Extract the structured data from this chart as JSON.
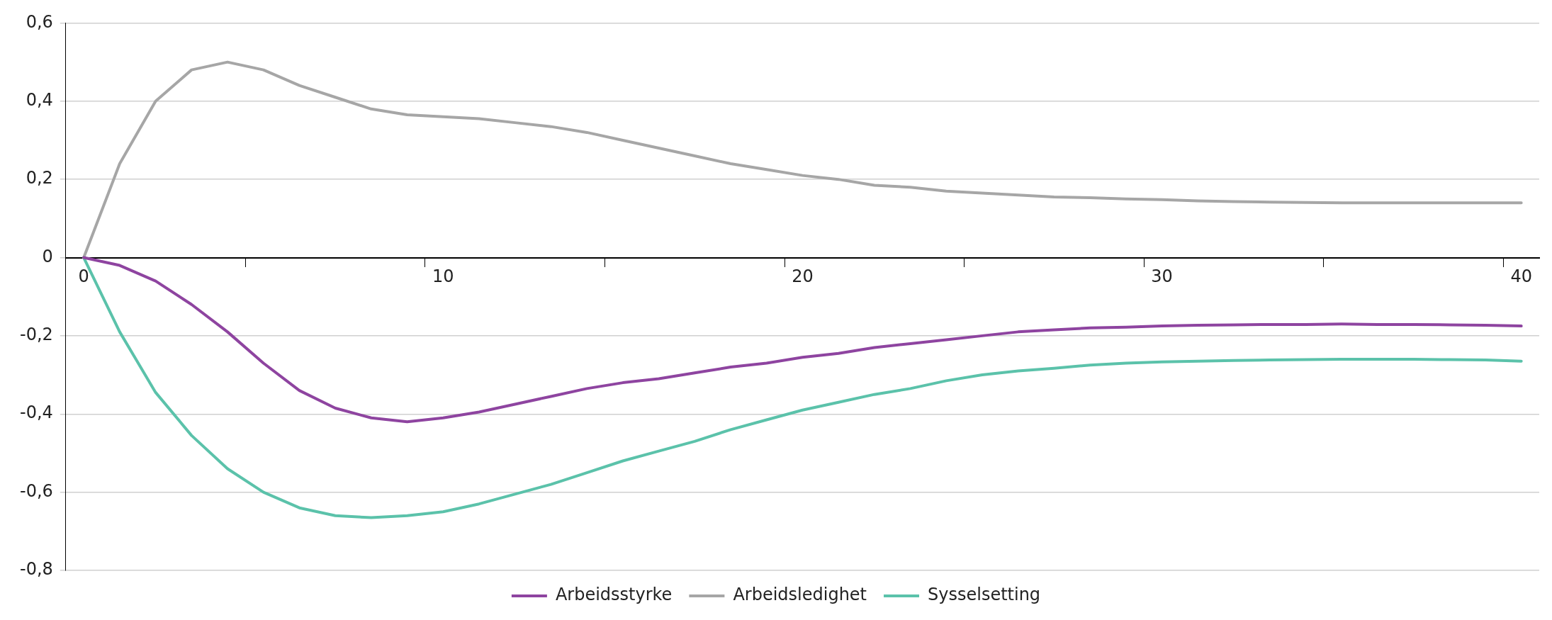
{
  "chart_data": {
    "type": "line",
    "categories": [
      "0",
      null,
      null,
      null,
      null,
      null,
      null,
      null,
      null,
      null,
      "10",
      null,
      null,
      null,
      null,
      null,
      null,
      null,
      null,
      null,
      "20",
      null,
      null,
      null,
      null,
      null,
      null,
      null,
      null,
      null,
      "30",
      null,
      null,
      null,
      null,
      null,
      null,
      null,
      null,
      null,
      "40"
    ],
    "series": [
      {
        "name": "Arbeidsstyrke",
        "color": "#8e44a0",
        "values": [
          0,
          -0.02,
          -0.06,
          -0.12,
          -0.19,
          -0.27,
          -0.34,
          -0.385,
          -0.41,
          -0.42,
          -0.41,
          -0.395,
          -0.375,
          -0.355,
          -0.335,
          -0.32,
          -0.31,
          -0.295,
          -0.28,
          -0.27,
          -0.255,
          -0.245,
          -0.23,
          -0.22,
          -0.21,
          -0.2,
          -0.19,
          -0.185,
          -0.18,
          -0.178,
          -0.175,
          -0.173,
          -0.172,
          -0.171,
          -0.171,
          -0.17,
          -0.171,
          -0.171,
          -0.172,
          -0.173,
          -0.175
        ]
      },
      {
        "name": "Arbeidsledighet",
        "color": "#a6a6a6",
        "values": [
          0,
          0.24,
          0.4,
          0.48,
          0.5,
          0.48,
          0.44,
          0.41,
          0.38,
          0.365,
          0.36,
          0.355,
          0.345,
          0.335,
          0.32,
          0.3,
          0.28,
          0.26,
          0.24,
          0.225,
          0.21,
          0.2,
          0.185,
          0.18,
          0.17,
          0.165,
          0.16,
          0.155,
          0.153,
          0.15,
          0.148,
          0.145,
          0.143,
          0.142,
          0.141,
          0.14,
          0.14,
          0.14,
          0.14,
          0.14,
          0.14
        ]
      },
      {
        "name": "Sysselsetting",
        "color": "#5bc2aa",
        "values": [
          0,
          -0.19,
          -0.345,
          -0.455,
          -0.54,
          -0.6,
          -0.64,
          -0.66,
          -0.665,
          -0.66,
          -0.65,
          -0.63,
          -0.605,
          -0.58,
          -0.55,
          -0.52,
          -0.495,
          -0.47,
          -0.44,
          -0.415,
          -0.39,
          -0.37,
          -0.35,
          -0.335,
          -0.315,
          -0.3,
          -0.29,
          -0.283,
          -0.275,
          -0.27,
          -0.267,
          -0.265,
          -0.263,
          -0.262,
          -0.261,
          -0.26,
          -0.26,
          -0.26,
          -0.261,
          -0.262,
          -0.265
        ]
      }
    ],
    "ylim": [
      -0.8,
      0.6
    ],
    "yticks": [
      {
        "value": -0.8,
        "label": "-0,8"
      },
      {
        "value": -0.6,
        "label": "-0,6"
      },
      {
        "value": -0.4,
        "label": "-0,4"
      },
      {
        "value": -0.2,
        "label": "-0,2"
      },
      0,
      {
        "value": 0.2,
        "label": "0,2"
      },
      {
        "value": 0.4,
        "label": "0,4"
      },
      {
        "value": 0.6,
        "label": "0,6"
      }
    ],
    "grid": "y",
    "legend": "bottom",
    "marker": "none",
    "line_style": "solid"
  }
}
